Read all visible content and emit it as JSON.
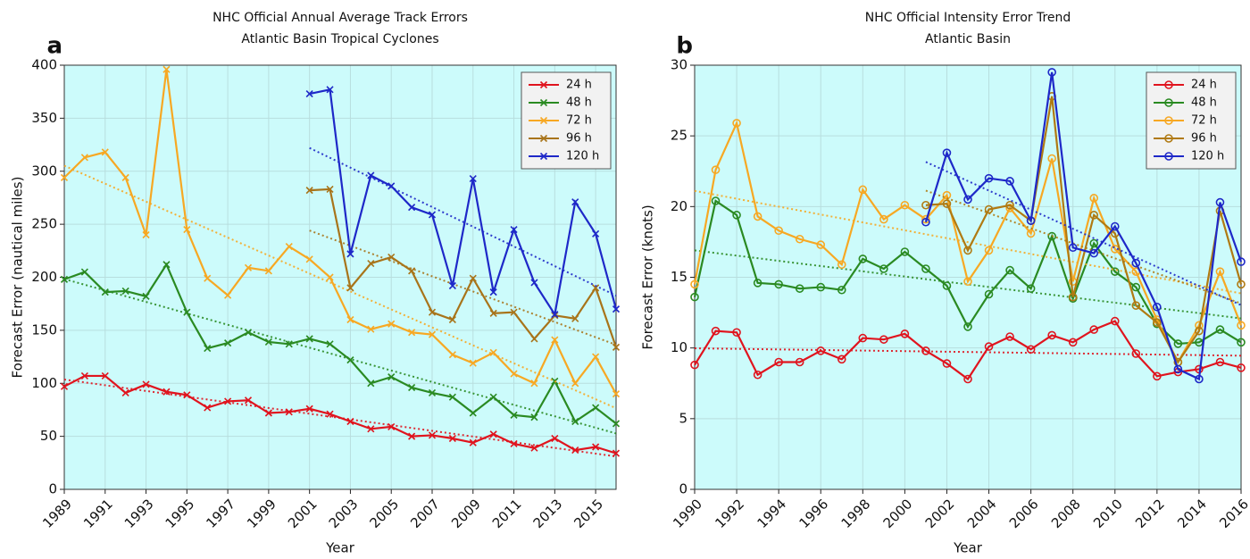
{
  "chart_data": [
    {
      "type": "line",
      "panel_label": "a",
      "title": "NHC Official Annual Average Track Errors",
      "subtitle": "Atlantic Basin Tropical Cyclones",
      "x_label": "Year",
      "y_label": "Forecast Error (nautical miles)",
      "x": [
        1989,
        1990,
        1991,
        1992,
        1993,
        1994,
        1995,
        1996,
        1997,
        1998,
        1999,
        2000,
        2001,
        2002,
        2003,
        2004,
        2005,
        2006,
        2007,
        2008,
        2009,
        2010,
        2011,
        2012,
        2013,
        2014,
        2015,
        2016
      ],
      "xlim": [
        1989,
        2016
      ],
      "xticks": [
        1989,
        1991,
        1993,
        1995,
        1997,
        1999,
        2001,
        2003,
        2005,
        2007,
        2009,
        2011,
        2013,
        2015
      ],
      "ylim": [
        0,
        400
      ],
      "yticks": [
        0,
        50,
        100,
        150,
        200,
        250,
        300,
        350,
        400
      ],
      "grid": true,
      "legend": "upper right",
      "marker": "x",
      "trendline": true,
      "background": "#ccfbfb",
      "series": [
        {
          "name": "24 h",
          "color": "#e0141e",
          "values": [
            97,
            107,
            107,
            91,
            99,
            92,
            89,
            77,
            83,
            84,
            72,
            73,
            76,
            71,
            64,
            57,
            59,
            50,
            51,
            48,
            44,
            52,
            43,
            39,
            48,
            37,
            40,
            34
          ]
        },
        {
          "name": "48 h",
          "color": "#2a8a22",
          "values": [
            198,
            205,
            186,
            187,
            182,
            212,
            167,
            133,
            138,
            148,
            139,
            137,
            142,
            137,
            122,
            100,
            106,
            96,
            91,
            87,
            72,
            87,
            70,
            68,
            102,
            64,
            77,
            62
          ]
        },
        {
          "name": "72 h",
          "color": "#f7a823",
          "values": [
            294,
            313,
            318,
            294,
            240,
            396,
            245,
            199,
            183,
            209,
            206,
            229,
            217,
            200,
            160,
            151,
            156,
            148,
            146,
            127,
            119,
            129,
            109,
            100,
            141,
            100,
            125,
            90
          ]
        },
        {
          "name": "96 h",
          "color": "#a8741a",
          "values": [
            null,
            null,
            null,
            null,
            null,
            null,
            null,
            null,
            null,
            null,
            null,
            null,
            282,
            283,
            190,
            213,
            219,
            206,
            167,
            160,
            199,
            166,
            167,
            142,
            164,
            161,
            190,
            134
          ]
        },
        {
          "name": "120 h",
          "color": "#1e28c8",
          "values": [
            null,
            null,
            null,
            null,
            null,
            null,
            null,
            null,
            null,
            null,
            null,
            null,
            373,
            377,
            222,
            296,
            286,
            266,
            259,
            192,
            293,
            186,
            245,
            195,
            165,
            271,
            241,
            170
          ]
        }
      ]
    },
    {
      "type": "line",
      "panel_label": "b",
      "title": "NHC Official Intensity Error Trend",
      "subtitle": "Atlantic Basin",
      "x_label": "Year",
      "y_label": "Forecast Error (knots)",
      "x": [
        1990,
        1991,
        1992,
        1993,
        1994,
        1995,
        1996,
        1997,
        1998,
        1999,
        2000,
        2001,
        2002,
        2003,
        2004,
        2005,
        2006,
        2007,
        2008,
        2009,
        2010,
        2011,
        2012,
        2013,
        2014,
        2015,
        2016
      ],
      "xlim": [
        1990,
        2016
      ],
      "xticks": [
        1990,
        1992,
        1994,
        1996,
        1998,
        2000,
        2002,
        2004,
        2006,
        2008,
        2010,
        2012,
        2014,
        2016
      ],
      "ylim": [
        0,
        30
      ],
      "yticks": [
        0,
        5,
        10,
        15,
        20,
        25,
        30
      ],
      "grid": true,
      "legend": "upper right",
      "marker": "circle",
      "trendline": true,
      "background": "#ccfbfb",
      "series": [
        {
          "name": "24 h",
          "color": "#e0141e",
          "values": [
            8.8,
            11.2,
            11.1,
            8.1,
            9.0,
            9.0,
            9.8,
            9.2,
            10.7,
            10.6,
            11.0,
            9.8,
            8.9,
            7.8,
            10.1,
            10.8,
            9.9,
            10.9,
            10.4,
            11.3,
            11.9,
            9.6,
            8.0,
            8.3,
            8.5,
            9.0,
            8.6
          ]
        },
        {
          "name": "48 h",
          "color": "#2a8a22",
          "values": [
            13.6,
            20.4,
            19.4,
            14.6,
            14.5,
            14.2,
            14.3,
            14.1,
            16.3,
            15.6,
            16.8,
            15.6,
            14.4,
            11.5,
            13.8,
            15.5,
            14.2,
            17.9,
            13.5,
            17.4,
            15.4,
            14.3,
            11.7,
            10.3,
            10.4,
            11.3,
            10.4
          ]
        },
        {
          "name": "72 h",
          "color": "#f7a823",
          "values": [
            14.5,
            22.6,
            25.9,
            19.3,
            18.3,
            17.7,
            17.3,
            15.9,
            21.2,
            19.1,
            20.1,
            19.1,
            20.8,
            14.7,
            16.9,
            19.9,
            18.1,
            23.4,
            14.7,
            20.6,
            17.0,
            15.4,
            12.0,
            9.0,
            11.6,
            15.4,
            11.6
          ]
        },
        {
          "name": "96 h",
          "color": "#b07a12",
          "values": [
            null,
            null,
            null,
            null,
            null,
            null,
            null,
            null,
            null,
            null,
            null,
            20.1,
            20.2,
            16.9,
            19.8,
            20.1,
            19.0,
            27.8,
            13.6,
            19.4,
            18.1,
            13.0,
            11.8,
            9.0,
            11.2,
            19.7,
            14.5
          ]
        },
        {
          "name": "120 h",
          "color": "#1e28c8",
          "values": [
            null,
            null,
            null,
            null,
            null,
            null,
            null,
            null,
            null,
            null,
            null,
            18.9,
            23.8,
            20.5,
            22.0,
            21.8,
            19.0,
            29.5,
            17.1,
            16.7,
            18.6,
            16.0,
            12.9,
            8.5,
            7.8,
            20.3,
            16.1
          ]
        }
      ]
    }
  ]
}
